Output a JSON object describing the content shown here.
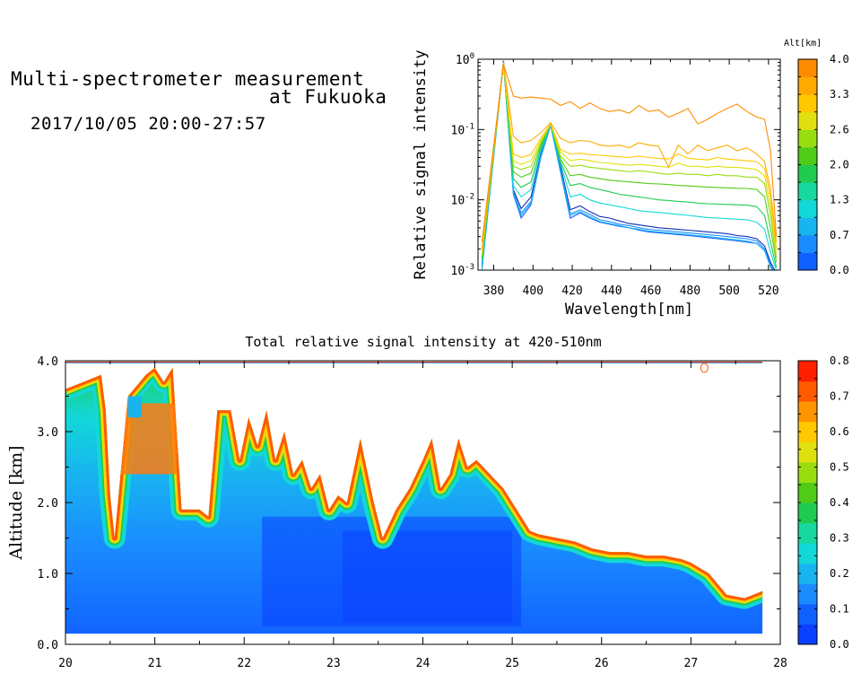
{
  "header": {
    "title_line1": "Multi-spectrometer measurement",
    "title_line2": "at Fukuoka",
    "datetime": "2017/10/05 20:00-27:57"
  },
  "chart_data": [
    {
      "type": "line",
      "xlabel": "Wavelength[nm]",
      "ylabel": "Relative signal intensity",
      "y_scale": "log",
      "xlim": [
        372,
        526
      ],
      "ylim": [
        0.001,
        1
      ],
      "x_ticks": [
        380,
        400,
        420,
        440,
        460,
        480,
        500,
        520
      ],
      "y_ticks": [
        {
          "value": 1,
          "base": "10",
          "exp": "0"
        },
        {
          "value": 0.1,
          "base": "10",
          "exp": "-1"
        },
        {
          "value": 0.01,
          "base": "10",
          "exp": "-2"
        },
        {
          "value": 0.001,
          "base": "10",
          "exp": "-3"
        }
      ],
      "colorbar": {
        "label": "Alt[km]",
        "ticks": [
          "0.0",
          "0.7",
          "1.3",
          "2.0",
          "2.6",
          "3.3",
          "4.0"
        ],
        "colors": [
          "#1060ff",
          "#1a8cff",
          "#18b4f0",
          "#12d8d8",
          "#18d8a0",
          "#20cc50",
          "#50cc18",
          "#99dd10",
          "#e0e010",
          "#ffc800",
          "#ffaa00",
          "#ff8c00"
        ]
      },
      "x": [
        374,
        385,
        390,
        394,
        399,
        404,
        409,
        414,
        419,
        424,
        429,
        434,
        439,
        444,
        449,
        454,
        459,
        464,
        469,
        474,
        479,
        484,
        489,
        494,
        499,
        504,
        509,
        514,
        518,
        521,
        524
      ],
      "series": [
        {
          "color": "#1030b0",
          "values": [
            0.0012,
            0.95,
            0.014,
            0.0075,
            0.011,
            0.045,
            0.12,
            0.03,
            0.0072,
            0.0082,
            0.0068,
            0.0058,
            0.0055,
            0.005,
            0.0046,
            0.0044,
            0.0042,
            0.004,
            0.0039,
            0.0038,
            0.0037,
            0.0036,
            0.0035,
            0.0034,
            0.0033,
            0.0031,
            0.003,
            0.0028,
            0.0022,
            0.0013,
            0.0009
          ]
        },
        {
          "color": "#1060ff",
          "values": [
            0.0011,
            0.93,
            0.012,
            0.0055,
            0.0085,
            0.04,
            0.115,
            0.025,
            0.0055,
            0.0065,
            0.0055,
            0.0048,
            0.0045,
            0.0042,
            0.004,
            0.0037,
            0.0035,
            0.0034,
            0.0033,
            0.0032,
            0.0031,
            0.003,
            0.0029,
            0.0028,
            0.0027,
            0.0026,
            0.0025,
            0.0024,
            0.0019,
            0.0012,
            0.0008
          ]
        },
        {
          "color": "#1a8cff",
          "values": [
            0.0011,
            0.92,
            0.013,
            0.0065,
            0.0095,
            0.042,
            0.118,
            0.027,
            0.0063,
            0.0072,
            0.0062,
            0.0052,
            0.0049,
            0.0045,
            0.0043,
            0.004,
            0.0038,
            0.0037,
            0.0036,
            0.0035,
            0.0034,
            0.0033,
            0.0032,
            0.0031,
            0.003,
            0.0029,
            0.0028,
            0.0026,
            0.002,
            0.0012,
            0.0008
          ]
        },
        {
          "color": "#18b4f0",
          "values": [
            0.001,
            0.9,
            0.0125,
            0.006,
            0.009,
            0.041,
            0.117,
            0.026,
            0.006,
            0.0068,
            0.0058,
            0.0049,
            0.0046,
            0.0043,
            0.004,
            0.0038,
            0.0036,
            0.0035,
            0.0034,
            0.0033,
            0.0032,
            0.0031,
            0.003,
            0.0029,
            0.0028,
            0.0027,
            0.0026,
            0.0024,
            0.0019,
            0.0011,
            0.0008
          ]
        },
        {
          "color": "#12d8d8",
          "values": [
            0.0013,
            0.9,
            0.016,
            0.011,
            0.014,
            0.05,
            0.12,
            0.033,
            0.011,
            0.012,
            0.01,
            0.009,
            0.0085,
            0.008,
            0.0075,
            0.007,
            0.0068,
            0.0066,
            0.0064,
            0.0062,
            0.006,
            0.0058,
            0.0056,
            0.0055,
            0.0054,
            0.0053,
            0.0052,
            0.0048,
            0.0038,
            0.0018,
            0.001
          ]
        },
        {
          "color": "#20cc50",
          "values": [
            0.0014,
            0.9,
            0.02,
            0.015,
            0.018,
            0.055,
            0.12,
            0.035,
            0.016,
            0.017,
            0.015,
            0.014,
            0.013,
            0.012,
            0.0115,
            0.011,
            0.0105,
            0.01,
            0.0098,
            0.0095,
            0.0093,
            0.009,
            0.0088,
            0.0087,
            0.0086,
            0.0085,
            0.0084,
            0.008,
            0.006,
            0.0025,
            0.0011
          ]
        },
        {
          "color": "#50cc18",
          "values": [
            0.0015,
            0.9,
            0.025,
            0.021,
            0.024,
            0.06,
            0.12,
            0.038,
            0.022,
            0.023,
            0.021,
            0.02,
            0.019,
            0.0185,
            0.018,
            0.0175,
            0.017,
            0.0168,
            0.0165,
            0.016,
            0.0158,
            0.0155,
            0.0152,
            0.015,
            0.0148,
            0.0146,
            0.0145,
            0.014,
            0.011,
            0.004,
            0.0013
          ]
        },
        {
          "color": "#99dd10",
          "values": [
            0.0016,
            0.9,
            0.03,
            0.027,
            0.03,
            0.065,
            0.12,
            0.042,
            0.03,
            0.031,
            0.029,
            0.028,
            0.027,
            0.026,
            0.025,
            0.026,
            0.025,
            0.024,
            0.023,
            0.024,
            0.023,
            0.023,
            0.022,
            0.023,
            0.022,
            0.022,
            0.021,
            0.021,
            0.017,
            0.006,
            0.0015
          ]
        },
        {
          "color": "#e0e010",
          "values": [
            0.0017,
            0.9,
            0.036,
            0.032,
            0.036,
            0.07,
            0.12,
            0.048,
            0.036,
            0.038,
            0.036,
            0.034,
            0.033,
            0.032,
            0.031,
            0.032,
            0.031,
            0.03,
            0.029,
            0.033,
            0.03,
            0.03,
            0.029,
            0.03,
            0.029,
            0.029,
            0.028,
            0.027,
            0.022,
            0.008,
            0.0017
          ]
        },
        {
          "color": "#ffc800",
          "values": [
            0.0018,
            0.9,
            0.045,
            0.04,
            0.044,
            0.075,
            0.12,
            0.052,
            0.045,
            0.046,
            0.044,
            0.043,
            0.042,
            0.041,
            0.04,
            0.042,
            0.04,
            0.039,
            0.038,
            0.045,
            0.039,
            0.038,
            0.037,
            0.04,
            0.038,
            0.037,
            0.036,
            0.035,
            0.028,
            0.011,
            0.002
          ]
        },
        {
          "color": "#ffaa00",
          "values": [
            0.002,
            0.88,
            0.08,
            0.065,
            0.07,
            0.09,
            0.125,
            0.075,
            0.065,
            0.07,
            0.068,
            0.06,
            0.058,
            0.06,
            0.055,
            0.065,
            0.06,
            0.058,
            0.029,
            0.06,
            0.045,
            0.06,
            0.05,
            0.055,
            0.06,
            0.05,
            0.055,
            0.045,
            0.035,
            0.014,
            0.0025
          ]
        },
        {
          "color": "#ff8c00",
          "values": [
            0.0025,
            0.85,
            0.3,
            0.28,
            0.29,
            0.28,
            0.27,
            0.22,
            0.25,
            0.2,
            0.24,
            0.2,
            0.18,
            0.19,
            0.17,
            0.22,
            0.18,
            0.19,
            0.15,
            0.17,
            0.2,
            0.12,
            0.14,
            0.17,
            0.2,
            0.23,
            0.18,
            0.15,
            0.14,
            0.05,
            0.003
          ]
        }
      ]
    },
    {
      "type": "heatmap",
      "title": "Total relative signal intensity at 420-510nm",
      "xlabel": "",
      "ylabel": "Altitude [km]",
      "xlim": [
        20,
        28
      ],
      "ylim": [
        0,
        4
      ],
      "x_ticks": [
        "20",
        "21",
        "22",
        "23",
        "24",
        "25",
        "26",
        "27",
        "28"
      ],
      "y_ticks": [
        "0.0",
        "1.0",
        "2.0",
        "3.0",
        "4.0"
      ],
      "data_start_hour": 20,
      "data_end_hour": 27.8,
      "min_altitude_km": 0.15,
      "colorbar": {
        "ticks": [
          "0.0",
          "0.1",
          "0.2",
          "0.3",
          "0.4",
          "0.5",
          "0.6",
          "0.7",
          "0.8"
        ],
        "colors": [
          "#0a40ff",
          "#1060ff",
          "#1a8cff",
          "#18b4f0",
          "#12d8d8",
          "#18d8a0",
          "#20cc50",
          "#50cc18",
          "#99dd10",
          "#e0e010",
          "#ffc800",
          "#ff9600",
          "#ff5a00",
          "#ff2000"
        ]
      },
      "cloud_top_profile": {
        "hours": [
          20.0,
          20.2,
          20.4,
          20.45,
          20.5,
          20.55,
          20.7,
          20.9,
          21.0,
          21.1,
          21.2,
          21.3,
          21.5,
          21.6,
          21.7,
          21.85,
          21.95,
          22.05,
          22.15,
          22.25,
          22.35,
          22.45,
          22.55,
          22.65,
          22.75,
          22.85,
          22.95,
          23.05,
          23.15,
          23.3,
          23.45,
          23.55,
          23.7,
          23.85,
          24.0,
          24.1,
          24.2,
          24.3,
          24.4,
          24.5,
          24.6,
          24.75,
          24.9,
          25.05,
          25.2,
          25.3,
          25.5,
          25.7,
          25.9,
          26.1,
          26.3,
          26.5,
          26.7,
          26.9,
          27.0,
          27.2,
          27.4,
          27.6,
          27.8
        ],
        "altitudes": [
          3.6,
          3.7,
          3.8,
          3.3,
          2.1,
          1.5,
          3.5,
          3.8,
          3.9,
          3.7,
          3.9,
          1.9,
          1.9,
          1.8,
          3.3,
          3.3,
          2.6,
          3.2,
          2.8,
          3.3,
          2.6,
          3.0,
          2.4,
          2.6,
          2.2,
          2.4,
          1.9,
          2.1,
          2.0,
          2.9,
          2.0,
          1.5,
          1.9,
          2.2,
          2.6,
          2.9,
          2.2,
          2.4,
          2.9,
          2.5,
          2.6,
          2.4,
          2.2,
          1.9,
          1.6,
          1.55,
          1.5,
          1.45,
          1.35,
          1.3,
          1.3,
          1.25,
          1.25,
          1.2,
          1.15,
          1.0,
          0.7,
          0.65,
          0.75
        ]
      }
    }
  ]
}
